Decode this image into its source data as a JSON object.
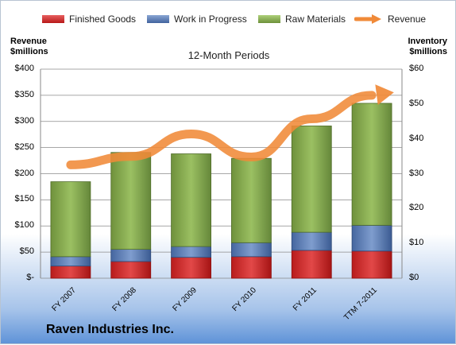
{
  "chart_data": {
    "type": "bar",
    "subtitle": "12-Month Periods",
    "categories": [
      "FY 2007",
      "FY 2008",
      "FY 2009",
      "FY 2010",
      "FY 2011",
      "TTM 7-2011"
    ],
    "left_axis": {
      "label_line1": "Revenue",
      "label_line2": "$millions",
      "ticks": [
        "$-",
        "$50",
        "$100",
        "$150",
        "$200",
        "$250",
        "$300",
        "$350",
        "$400"
      ],
      "ylim": [
        0,
        400
      ]
    },
    "right_axis": {
      "label_line1": "Inventory",
      "label_line2": "$millions",
      "ticks": [
        "$0",
        "$10",
        "$20",
        "$30",
        "$40",
        "$50",
        "$60"
      ],
      "ylim": [
        0,
        60
      ]
    },
    "series": [
      {
        "name": "Finished Goods",
        "axis": "right",
        "kind": "stacked-bar",
        "color": "#d02828",
        "values": [
          3.5,
          4.8,
          6.0,
          6.2,
          8.0,
          7.8
        ]
      },
      {
        "name": "Work in Progress",
        "axis": "right",
        "kind": "stacked-bar",
        "color": "#5b7fb8",
        "values": [
          2.7,
          3.5,
          3.1,
          4.0,
          5.2,
          7.4
        ]
      },
      {
        "name": "Raw Materials",
        "axis": "right",
        "kind": "stacked-bar",
        "color": "#8db050",
        "values": [
          21.5,
          27.8,
          26.6,
          24.2,
          30.5,
          35.0
        ]
      },
      {
        "name": "Revenue",
        "axis": "left",
        "kind": "line",
        "color": "#f08a38",
        "values": [
          217,
          233,
          276,
          232,
          305,
          350
        ]
      }
    ],
    "grid": true,
    "legend": "top"
  },
  "company": "Raven Industries Inc."
}
